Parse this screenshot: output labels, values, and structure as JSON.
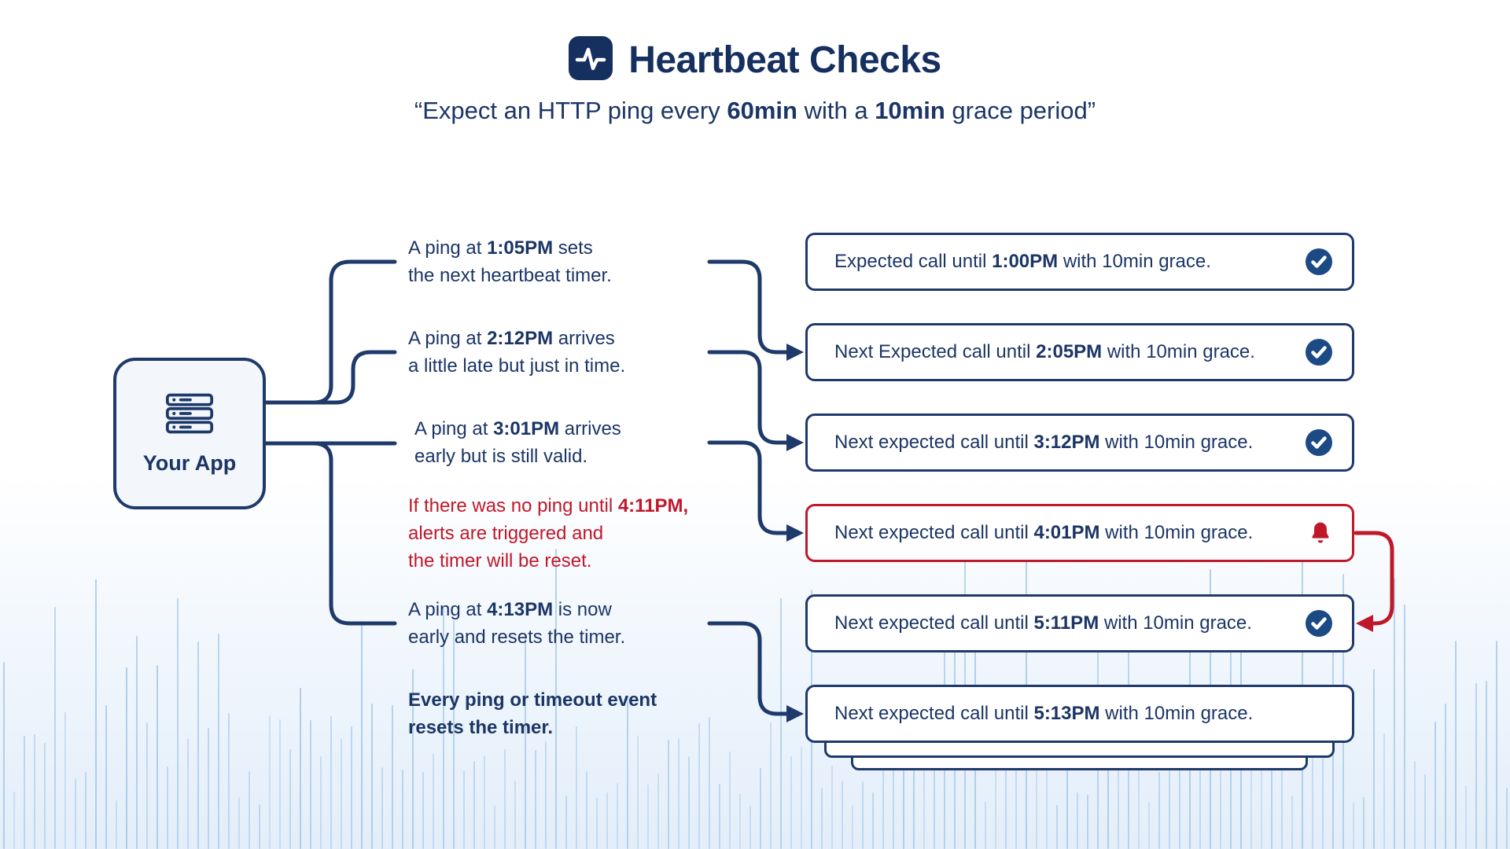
{
  "colors": {
    "navy": "#1e3a6b",
    "navy-dark": "#15305f",
    "navy-text": "#1b3566",
    "red": "#c0182b",
    "check": "#1c4a85",
    "wave": "#9cc0e4"
  },
  "title": "Heartbeat Checks",
  "subtitle": {
    "pre": "“Expect an HTTP ping every ",
    "bold1": "60min",
    "mid": " with a ",
    "bold2": "10min",
    "post": " grace period”"
  },
  "app_box": {
    "label": "Your App"
  },
  "events": [
    {
      "lines": [
        {
          "pre": "A ping at ",
          "time": "1:05PM",
          "post": " sets"
        },
        {
          "pre": "the next heartbeat timer."
        }
      ]
    },
    {
      "lines": [
        {
          "pre": "A ping at ",
          "time": "2:12PM",
          "post": " arrives"
        },
        {
          "pre": "a little late but just in time."
        }
      ]
    },
    {
      "lines": [
        {
          "pre": "A ping at ",
          "time": "3:01PM",
          "post": " arrives"
        },
        {
          "pre": "early but is still valid."
        }
      ]
    },
    {
      "lines": [
        {
          "pre": "If there was no ping until ",
          "time": "4:11PM,"
        },
        {
          "pre": "alerts are triggered and"
        },
        {
          "pre": "the timer will be reset."
        }
      ]
    },
    {
      "lines": [
        {
          "pre": "A ping at ",
          "time": "4:13PM",
          "post": " is now"
        },
        {
          "pre": "early and resets the timer."
        }
      ]
    },
    {
      "lines": [
        {
          "pre": "Every ping or timeout event"
        },
        {
          "pre": "resets the timer."
        }
      ]
    }
  ],
  "timeline": [
    {
      "pre": "Expected call until ",
      "time": "1:00PM",
      "post": " with 10min grace.",
      "icon": "check"
    },
    {
      "pre": "Next Expected call until ",
      "time": "2:05PM",
      "post": " with 10min grace.",
      "icon": "check"
    },
    {
      "pre": "Next expected call until ",
      "time": "3:12PM",
      "post": " with 10min grace.",
      "icon": "check"
    },
    {
      "pre": "Next expected call until ",
      "time": "4:01PM",
      "post": " with 10min grace.",
      "icon": "bell"
    },
    {
      "pre": "Next expected call until ",
      "time": "5:11PM",
      "post": " with 10min grace.",
      "icon": "check"
    },
    {
      "pre": "Next expected call until ",
      "time": "5:13PM",
      "post": " with 10min grace.",
      "icon": "none"
    }
  ]
}
